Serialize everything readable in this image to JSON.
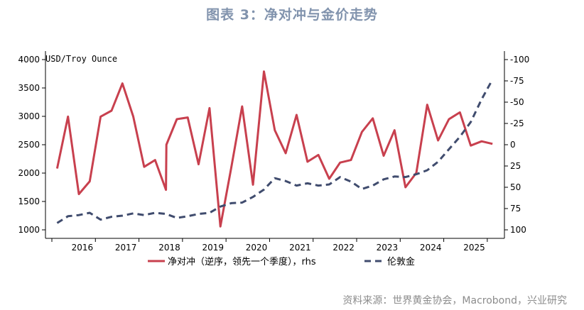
{
  "title": "图表 3：净对冲与金价走势",
  "source": "资料来源：世界黄金协会，Macrobond，兴业研究",
  "colors": {
    "hedge": "#c8404e",
    "gold": "#404c6e",
    "title": "#8193ad"
  },
  "chart_data": {
    "type": "line",
    "left_axis": {
      "label": "USD/Troy Ounce",
      "range": [
        1000,
        4000
      ],
      "ticks": [
        "1000",
        "1500",
        "2000",
        "2500",
        "3000",
        "3500",
        "4000"
      ]
    },
    "right_axis": {
      "range": [
        100,
        -100
      ],
      "inverted": true,
      "ticks": [
        "100",
        "75",
        "50",
        "25",
        "0",
        "-25",
        "-50",
        "-75",
        "-100"
      ]
    },
    "x_axis": {
      "range": [
        2015.5,
        2025.6
      ],
      "ticks": [
        "2016",
        "2017",
        "2018",
        "2019",
        "2020",
        "2021",
        "2022",
        "2023",
        "2024",
        "2025"
      ]
    },
    "grid": false,
    "legend": {
      "placement": "bottom"
    },
    "series": [
      {
        "name": "净对冲（逆序，领先一个季度），rhs",
        "axis": "right",
        "style": "solid",
        "points": [
          [
            2015.62,
            28
          ],
          [
            2015.87,
            -33
          ],
          [
            2016.12,
            58
          ],
          [
            2016.37,
            43
          ],
          [
            2016.62,
            -33
          ],
          [
            2016.87,
            -40
          ],
          [
            2017.12,
            -72
          ],
          [
            2017.37,
            -33
          ],
          [
            2017.62,
            26
          ],
          [
            2017.87,
            18
          ],
          [
            2018.12,
            53
          ],
          [
            2018.37,
            -30
          ],
          [
            2018.62,
            -32
          ],
          [
            2018.87,
            23
          ],
          [
            2018.13,
            0
          ],
          [
            2019.12,
            -43
          ],
          [
            2019.37,
            96
          ],
          [
            2019.62,
            27
          ],
          [
            2019.87,
            -45
          ],
          [
            2020.12,
            47
          ],
          [
            2020.37,
            -86
          ],
          [
            2020.62,
            -17
          ],
          [
            2020.87,
            10
          ],
          [
            2021.12,
            -35
          ],
          [
            2021.37,
            20
          ],
          [
            2021.62,
            12
          ],
          [
            2021.87,
            40
          ],
          [
            2022.12,
            21
          ],
          [
            2022.37,
            18
          ],
          [
            2022.62,
            -15
          ],
          [
            2022.87,
            -31
          ],
          [
            2023.12,
            13
          ],
          [
            2023.37,
            -17
          ],
          [
            2023.62,
            50
          ],
          [
            2023.87,
            33
          ],
          [
            2024.12,
            -47
          ],
          [
            2024.37,
            -5
          ],
          [
            2024.62,
            -30
          ],
          [
            2024.87,
            -38
          ],
          [
            2025.12,
            1
          ],
          [
            2025.37,
            -4
          ],
          [
            2025.62,
            -1
          ]
        ]
      },
      {
        "name": "伦敦金",
        "axis": "left",
        "style": "dashed",
        "points": [
          [
            2015.62,
            1120
          ],
          [
            2015.87,
            1240
          ],
          [
            2016.12,
            1260
          ],
          [
            2016.37,
            1300
          ],
          [
            2016.62,
            1180
          ],
          [
            2016.87,
            1230
          ],
          [
            2017.12,
            1250
          ],
          [
            2017.37,
            1290
          ],
          [
            2017.62,
            1260
          ],
          [
            2017.87,
            1300
          ],
          [
            2018.12,
            1280
          ],
          [
            2018.37,
            1210
          ],
          [
            2018.62,
            1240
          ],
          [
            2018.87,
            1280
          ],
          [
            2019.12,
            1300
          ],
          [
            2019.37,
            1410
          ],
          [
            2019.62,
            1470
          ],
          [
            2019.87,
            1480
          ],
          [
            2020.12,
            1580
          ],
          [
            2020.37,
            1710
          ],
          [
            2020.62,
            1910
          ],
          [
            2020.87,
            1860
          ],
          [
            2021.12,
            1780
          ],
          [
            2021.37,
            1820
          ],
          [
            2021.62,
            1780
          ],
          [
            2021.87,
            1800
          ],
          [
            2022.12,
            1930
          ],
          [
            2022.37,
            1850
          ],
          [
            2022.62,
            1720
          ],
          [
            2022.87,
            1780
          ],
          [
            2023.12,
            1890
          ],
          [
            2023.37,
            1940
          ],
          [
            2023.62,
            1930
          ],
          [
            2023.87,
            1980
          ],
          [
            2024.12,
            2050
          ],
          [
            2024.37,
            2200
          ],
          [
            2024.62,
            2420
          ],
          [
            2024.87,
            2640
          ],
          [
            2025.12,
            2900
          ],
          [
            2025.37,
            3300
          ],
          [
            2025.62,
            3650
          ]
        ]
      }
    ]
  }
}
